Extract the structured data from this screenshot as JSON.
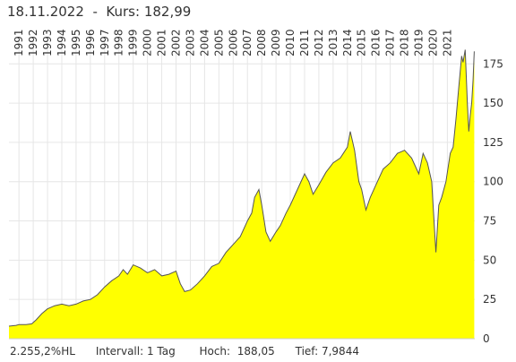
{
  "header": {
    "date": "18.11.2022",
    "separator": "-",
    "price_label": "Kurs:",
    "price": "182,99"
  },
  "footer": {
    "change": "2.255,2%HL",
    "interval_label": "Intervall:",
    "interval": "1 Tag",
    "high_label": "Hoch:",
    "high": "188,05",
    "low_label": "Tief:",
    "low": "7,9844"
  },
  "colors": {
    "fill": "#ffff00",
    "line": "#555555",
    "grid": "#e6e6e6"
  },
  "chart_data": {
    "type": "area",
    "ylim": [
      0,
      190
    ],
    "yticks": [
      0,
      25,
      50,
      75,
      100,
      125,
      150,
      175
    ],
    "xlim": [
      1990.3,
      2022.92
    ],
    "xticks": [
      "1991",
      "1992",
      "1993",
      "1994",
      "1995",
      "1996",
      "1997",
      "1998",
      "1999",
      "2000",
      "2001",
      "2002",
      "2003",
      "2004",
      "2005",
      "2006",
      "2007",
      "2008",
      "2009",
      "2010",
      "2011",
      "2012",
      "2013",
      "2014",
      "2015",
      "2016",
      "2017",
      "2018",
      "2019",
      "2020",
      "2021"
    ],
    "grid": true,
    "x": [
      1990.3,
      1990.8,
      1991.0,
      1991.5,
      1991.9,
      1992.2,
      1992.6,
      1993.0,
      1993.5,
      1994.0,
      1994.5,
      1995.0,
      1995.5,
      1996.0,
      1996.5,
      1997.0,
      1997.5,
      1998.0,
      1998.3,
      1998.6,
      1999.0,
      1999.5,
      2000.0,
      2000.5,
      2001.0,
      2001.5,
      2002.0,
      2002.3,
      2002.6,
      2003.0,
      2003.5,
      2004.0,
      2004.5,
      2005.0,
      2005.5,
      2006.0,
      2006.5,
      2007.0,
      2007.3,
      2007.5,
      2007.8,
      2008.0,
      2008.3,
      2008.6,
      2009.0,
      2009.3,
      2009.7,
      2010.0,
      2010.5,
      2011.0,
      2011.3,
      2011.6,
      2012.0,
      2012.5,
      2013.0,
      2013.5,
      2014.0,
      2014.2,
      2014.5,
      2014.8,
      2015.0,
      2015.3,
      2015.6,
      2016.0,
      2016.5,
      2017.0,
      2017.5,
      2018.0,
      2018.5,
      2019.0,
      2019.3,
      2019.6,
      2019.9,
      2020.1,
      2020.2,
      2020.4,
      2020.6,
      2020.9,
      2021.2,
      2021.4,
      2021.6,
      2021.8,
      2021.9,
      2022.0,
      2022.1,
      2022.25,
      2022.4,
      2022.5,
      2022.6,
      2022.7,
      2022.8,
      2022.88
    ],
    "y": [
      8,
      8.5,
      9,
      9,
      9.5,
      12,
      16,
      19,
      21,
      22,
      21,
      22,
      24,
      25,
      28,
      33,
      37,
      40,
      44,
      41,
      47,
      45,
      42,
      44,
      40,
      41,
      43,
      35,
      30,
      31,
      35,
      40,
      46,
      48,
      55,
      60,
      65,
      75,
      80,
      90,
      95,
      85,
      68,
      62,
      68,
      72,
      80,
      85,
      95,
      105,
      100,
      92,
      98,
      106,
      112,
      115,
      122,
      132,
      120,
      100,
      95,
      82,
      90,
      98,
      108,
      112,
      118,
      120,
      115,
      105,
      118,
      112,
      100,
      70,
      55,
      85,
      90,
      100,
      118,
      122,
      140,
      160,
      170,
      180,
      176,
      184,
      150,
      132,
      142,
      150,
      165,
      183
    ]
  }
}
